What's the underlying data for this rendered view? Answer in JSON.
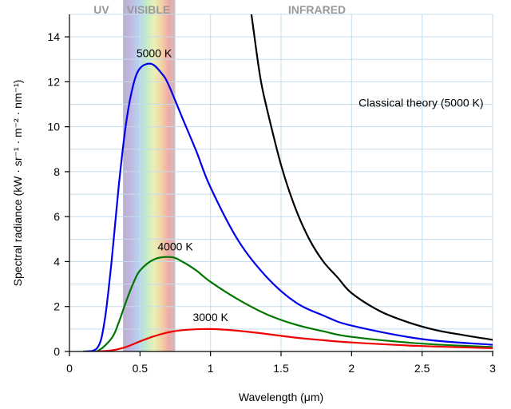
{
  "chart_data": {
    "type": "line",
    "xlabel": "Wavelength (μm)",
    "ylabel": "Spectral radiance (kW · sr⁻¹ · m⁻² · nm⁻¹)",
    "xlim": [
      0,
      3
    ],
    "ylim": [
      0,
      15
    ],
    "x_ticks": [
      0,
      0.5,
      1,
      1.5,
      2,
      2.5,
      3
    ],
    "x_tick_labels": [
      "0",
      "0.5",
      "1",
      "1.5",
      "2",
      "2.5",
      "3"
    ],
    "y_ticks": [
      0,
      2,
      4,
      6,
      8,
      10,
      12,
      14
    ],
    "y_tick_labels": [
      "0",
      "2",
      "4",
      "6",
      "8",
      "10",
      "12",
      "14"
    ],
    "grid": true,
    "regions": [
      {
        "label": "UV",
        "color": "#999999"
      },
      {
        "label": "VISIBLE",
        "color": "#999999",
        "x_range": [
          0.38,
          0.75
        ]
      },
      {
        "label": "INFRARED",
        "color": "#999999"
      }
    ],
    "series": [
      {
        "name": "5000 K",
        "color": "#0000ee",
        "x": [
          0.1,
          0.2,
          0.25,
          0.3,
          0.35,
          0.4,
          0.45,
          0.5,
          0.58,
          0.65,
          0.7,
          0.8,
          0.9,
          1.0,
          1.2,
          1.4,
          1.6,
          1.8,
          2.0,
          2.5,
          3.0
        ],
        "y": [
          0.0,
          0.18,
          1.4,
          4.1,
          7.4,
          10.1,
          11.8,
          12.6,
          12.8,
          12.4,
          11.9,
          10.4,
          8.9,
          7.3,
          4.9,
          3.3,
          2.2,
          1.6,
          1.15,
          0.55,
          0.3
        ]
      },
      {
        "name": "4000 K",
        "color": "#007700",
        "x": [
          0.1,
          0.2,
          0.3,
          0.35,
          0.4,
          0.45,
          0.5,
          0.6,
          0.72,
          0.8,
          0.9,
          1.0,
          1.2,
          1.4,
          1.6,
          1.8,
          2.0,
          2.5,
          3.0
        ],
        "y": [
          0.0,
          0.02,
          0.6,
          1.3,
          2.2,
          3.0,
          3.6,
          4.1,
          4.2,
          4.0,
          3.6,
          3.1,
          2.3,
          1.65,
          1.2,
          0.9,
          0.65,
          0.35,
          0.2
        ]
      },
      {
        "name": "3000 K",
        "color": "#ee0000",
        "x": [
          0.2,
          0.3,
          0.4,
          0.5,
          0.6,
          0.7,
          0.8,
          0.97,
          1.1,
          1.2,
          1.4,
          1.6,
          1.8,
          2.0,
          2.5,
          3.0
        ],
        "y": [
          0.0,
          0.05,
          0.2,
          0.45,
          0.68,
          0.85,
          0.95,
          1.0,
          0.97,
          0.92,
          0.78,
          0.62,
          0.5,
          0.4,
          0.24,
          0.15
        ]
      },
      {
        "name": "Classical theory (5000 K)",
        "color": "#000000",
        "x": [
          1.29,
          1.35,
          1.4,
          1.5,
          1.6,
          1.7,
          1.8,
          1.9,
          2.0,
          2.2,
          2.4,
          2.6,
          2.8,
          3.0
        ],
        "y": [
          15.0,
          12.3,
          10.8,
          8.3,
          6.4,
          5.0,
          4.0,
          3.3,
          2.6,
          1.8,
          1.3,
          0.95,
          0.72,
          0.52
        ]
      }
    ],
    "annotations": [
      {
        "text": "5000 K",
        "x": 0.6,
        "y": 13.1
      },
      {
        "text": "4000 K",
        "x": 0.75,
        "y": 4.5
      },
      {
        "text": "3000 K",
        "x": 1.0,
        "y": 1.35
      },
      {
        "text": "Classical theory (5000 K)",
        "x": 2.05,
        "y": 10.9
      }
    ]
  }
}
